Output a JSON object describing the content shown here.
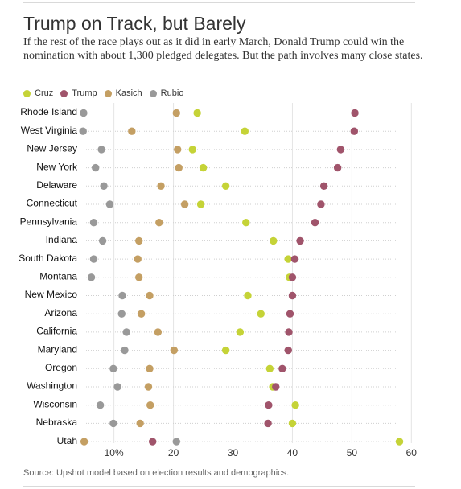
{
  "title": "Trump on Track, but Barely",
  "subtitle": "If the rest of the race plays out as it did in early March, Donald Trump could win the nomination with about 1,300 pledged delegates. But the path involves many close states.",
  "source": "Source: Upshot model based on election results and demographics.",
  "legend": [
    {
      "name": "Cruz",
      "color": "#c5d337"
    },
    {
      "name": "Trump",
      "color": "#a0546b"
    },
    {
      "name": "Kasich",
      "color": "#c49f63"
    },
    {
      "name": "Rubio",
      "color": "#999999"
    }
  ],
  "chart_data": {
    "type": "scatter",
    "title": "Trump on Track, but Barely",
    "xlabel": "",
    "ylabel": "",
    "xlim": [
      4.3,
      61
    ],
    "xticks": [
      {
        "value": 10,
        "label": "10%"
      },
      {
        "value": 20,
        "label": "20"
      },
      {
        "value": 30,
        "label": "30"
      },
      {
        "value": 40,
        "label": "40"
      },
      {
        "value": 50,
        "label": "50"
      },
      {
        "value": 60,
        "label": "60"
      }
    ],
    "grid": "vertical",
    "legend_position": "top-left",
    "categories": [
      "Rhode Island",
      "West Virginia",
      "New Jersey",
      "New York",
      "Delaware",
      "Connecticut",
      "Pennsylvania",
      "Indiana",
      "South Dakota",
      "Montana",
      "New Mexico",
      "Arizona",
      "California",
      "Maryland",
      "Oregon",
      "Washington",
      "Wisconsin",
      "Nebraska",
      "Utah"
    ],
    "series": [
      {
        "name": "Rubio",
        "color": "#999999",
        "values": [
          4.9,
          4.8,
          7.9,
          6.9,
          8.3,
          9.3,
          6.6,
          8.1,
          6.6,
          6.2,
          11.4,
          11.3,
          12.1,
          11.8,
          9.9,
          10.6,
          7.7,
          9.9,
          20.5
        ]
      },
      {
        "name": "Kasich",
        "color": "#c49f63",
        "values": [
          20.5,
          13.0,
          20.7,
          20.9,
          17.9,
          21.9,
          17.6,
          14.2,
          14.0,
          14.2,
          16.0,
          14.6,
          17.4,
          20.1,
          16.0,
          15.8,
          16.1,
          14.4,
          5.0
        ]
      },
      {
        "name": "Cruz",
        "color": "#c5d337",
        "values": [
          24.0,
          32.0,
          23.2,
          25.0,
          28.8,
          24.6,
          32.2,
          36.8,
          39.3,
          39.5,
          32.5,
          34.7,
          31.2,
          28.8,
          36.2,
          36.7,
          40.5,
          40.0,
          58.0
        ]
      },
      {
        "name": "Trump",
        "color": "#a0546b",
        "values": [
          50.5,
          50.4,
          48.1,
          47.6,
          45.3,
          44.8,
          43.8,
          41.3,
          40.4,
          40.0,
          40.0,
          39.6,
          39.4,
          39.3,
          38.3,
          37.2,
          36.0,
          35.9,
          16.5
        ]
      }
    ]
  }
}
